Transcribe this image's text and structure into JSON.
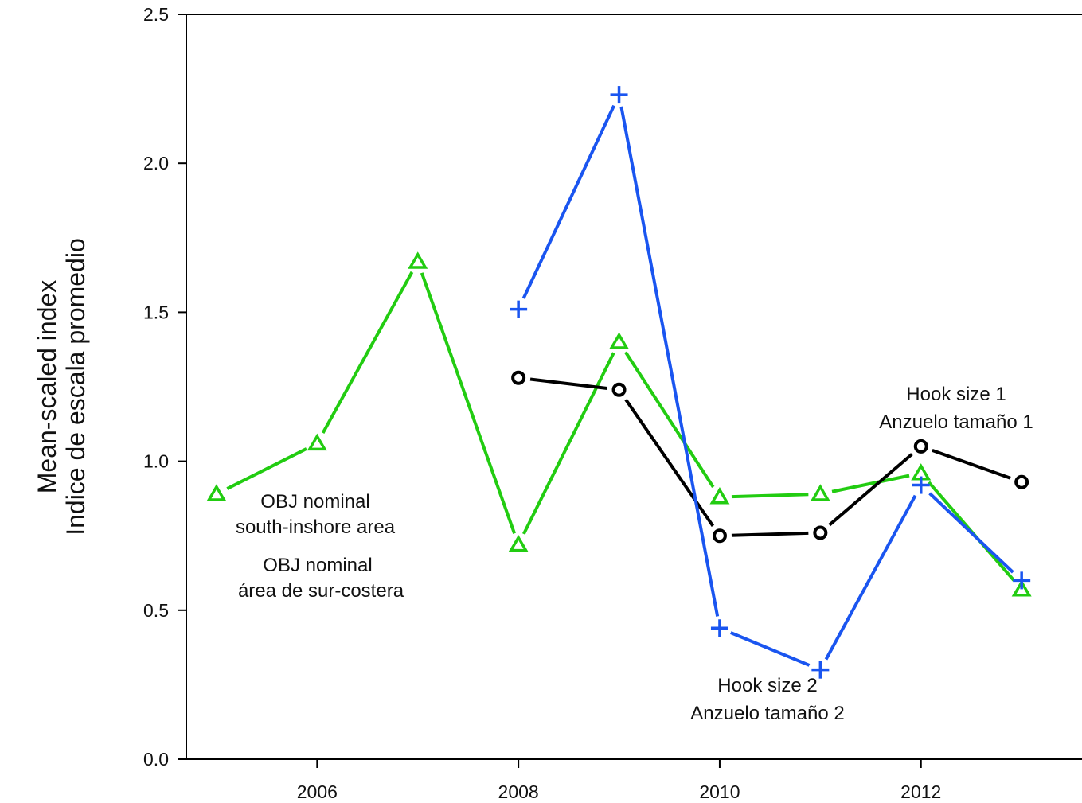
{
  "chart_data": {
    "type": "line",
    "title": "",
    "xlabel": "",
    "ylabel_lines": [
      "Mean-scaled index",
      "Indice de escala promedio"
    ],
    "xlim": [
      2004.7,
      2013.6
    ],
    "ylim": [
      0.0,
      2.5
    ],
    "x_ticks": [
      2006,
      2008,
      2010,
      2012
    ],
    "y_ticks": [
      0.0,
      0.5,
      1.0,
      1.5,
      2.0,
      2.5
    ],
    "y_tick_labels": [
      "0.0",
      "0.5",
      "1.0",
      "1.5",
      "2.0",
      "2.5"
    ],
    "grid": false,
    "series": [
      {
        "key": "obj_nominal",
        "marker": "triangle",
        "color": "#22cc11",
        "x": [
          2005,
          2006,
          2007,
          2008,
          2009,
          2010,
          2011,
          2012,
          2013
        ],
        "values": [
          0.89,
          1.06,
          1.67,
          0.72,
          1.4,
          0.88,
          0.89,
          0.96,
          0.57
        ]
      },
      {
        "key": "hook_size_1",
        "marker": "circle",
        "color": "#000000",
        "x": [
          2008,
          2009,
          2010,
          2011,
          2012,
          2013
        ],
        "values": [
          1.28,
          1.24,
          0.75,
          0.76,
          1.05,
          0.93
        ]
      },
      {
        "key": "hook_size_2",
        "marker": "plus",
        "color": "#1a55f0",
        "x": [
          2008,
          2009,
          2010,
          2011,
          2012,
          2013
        ],
        "values": [
          1.51,
          2.23,
          0.44,
          0.3,
          0.92,
          0.6
        ]
      }
    ],
    "annotations": [
      {
        "series": "obj_nominal",
        "lines": [
          "OBJ nominal",
          "south-inshore area"
        ]
      },
      {
        "series": "obj_nominal",
        "lines": [
          "OBJ nominal",
          "área de sur-costera"
        ]
      },
      {
        "series": "hook_size_1",
        "lines": [
          "Hook size 1",
          "Anzuelo tamaño 1"
        ]
      },
      {
        "series": "hook_size_2",
        "lines": [
          "Hook size 2",
          "Anzuelo tamaño 2"
        ]
      }
    ]
  }
}
